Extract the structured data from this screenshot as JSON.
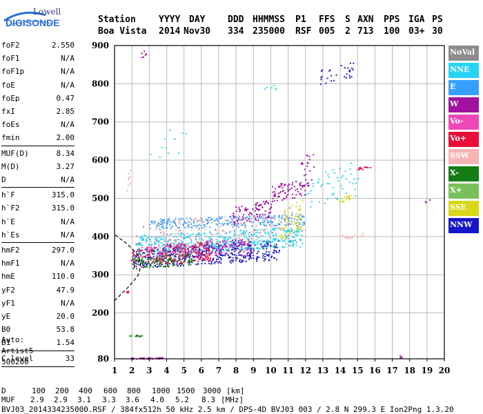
{
  "logo": {
    "line1": "Lowell",
    "line2": "DIGISONDE"
  },
  "header": {
    "labels": [
      "Station",
      "YYYY",
      "DAY",
      "DDD",
      "HHMMSS",
      "P1",
      "FFS",
      "S",
      "AXN",
      "PPS",
      "IGA",
      "PS"
    ],
    "values": [
      "Boa Vista",
      "2014",
      "Nov30",
      "334",
      "235000",
      "RSF",
      "005",
      "2",
      "713",
      "100",
      "03+",
      "30"
    ]
  },
  "params": [
    {
      "name": "foF2",
      "value": "2.550"
    },
    {
      "name": "foF1",
      "value": "N/A"
    },
    {
      "name": "foF1p",
      "value": "N/A"
    },
    {
      "name": "foE",
      "value": "N/A"
    },
    {
      "name": "foEp",
      "value": "0.47"
    },
    {
      "name": "fxI",
      "value": "2.85"
    },
    {
      "name": "foEs",
      "value": "N/A"
    },
    {
      "name": "fmin",
      "value": "2.00"
    },
    {
      "name": "MUF(D)",
      "value": "8.34"
    },
    {
      "name": "M(D)",
      "value": "3.27"
    },
    {
      "name": "D",
      "value": "N/A"
    },
    {
      "name": "h`F",
      "value": "315.0"
    },
    {
      "name": "h`F2",
      "value": "315.0"
    },
    {
      "name": "h`E",
      "value": "N/A"
    },
    {
      "name": "h`Es",
      "value": "N/A"
    },
    {
      "name": "hmF2",
      "value": "297.0"
    },
    {
      "name": "hmF1",
      "value": "N/A"
    },
    {
      "name": "hmE",
      "value": "110.0"
    },
    {
      "name": "yF2",
      "value": "47.9"
    },
    {
      "name": "yF1",
      "value": "N/A"
    },
    {
      "name": "yE",
      "value": "20.0"
    },
    {
      "name": "B0",
      "value": "53.8"
    },
    {
      "name": "B1",
      "value": "1.54"
    },
    {
      "name": "C-level",
      "value": "33"
    }
  ],
  "auto": {
    "line1": "Auto:",
    "line2": "Artist5",
    "line3": "500200"
  },
  "footer": {
    "d_label": "D",
    "d_values": [
      "100",
      "200",
      "400",
      "600",
      "800",
      "1000",
      "1500",
      "3000"
    ],
    "d_unit": "[km]",
    "muf_label": "MUF",
    "muf_values": [
      "2.9",
      "2.9",
      "3.1",
      "3.3",
      "3.6",
      "4.0",
      "5.2",
      "8.3"
    ],
    "muf_unit": "[MHz]",
    "file_line": "BVJ03_2014334235000.RSF / 384fx512h 50 kHz 2.5 km / DPS-4D BVJ03 003 / 2.8 N 299.3 E Ion2Png 1.3.20"
  },
  "legend": [
    {
      "label": "NoVal",
      "color": "#8c8c8c"
    },
    {
      "label": "NNE",
      "color": "#27d3f5"
    },
    {
      "label": "E",
      "color": "#36a0ff"
    },
    {
      "label": "W",
      "color": "#a0129f"
    },
    {
      "label": "Vo-",
      "color": "#f048b8"
    },
    {
      "label": "Vo+",
      "color": "#e8103a"
    },
    {
      "label": "SSW",
      "color": "#f7b4b4"
    },
    {
      "label": "X-",
      "color": "#147c14"
    },
    {
      "label": "X+",
      "color": "#7ac05a"
    },
    {
      "label": "SSE",
      "color": "#d8d818"
    },
    {
      "label": "NNW",
      "color": "#1616c8"
    }
  ],
  "chart_data": {
    "type": "scatter",
    "title": "",
    "xlabel": "",
    "ylabel": "",
    "xlim": [
      1,
      20
    ],
    "ylim": [
      80,
      900
    ],
    "x_ticks": [
      1,
      2,
      3,
      4,
      5,
      6,
      7,
      8,
      9,
      10,
      11,
      12,
      13,
      14,
      15,
      16,
      17,
      18,
      19,
      20
    ],
    "y_ticks": [
      80,
      200,
      300,
      400,
      500,
      600,
      700,
      800,
      900
    ],
    "grid": true,
    "legend_position": "right",
    "profile_curve": [
      [
        1.0,
        232
      ],
      [
        1.4,
        250
      ],
      [
        1.8,
        268
      ],
      [
        2.1,
        284
      ],
      [
        2.35,
        298
      ],
      [
        2.45,
        312
      ],
      [
        2.5,
        330
      ],
      [
        2.4,
        348
      ],
      [
        2.1,
        364
      ],
      [
        1.7,
        382
      ],
      [
        1.2,
        398
      ],
      [
        1.0,
        406
      ]
    ],
    "clusters": [
      {
        "series": "NNW",
        "x": [
          2.0,
          10.5
        ],
        "y": [
          318,
          392
        ],
        "count": 420
      },
      {
        "series": "NNE",
        "x": [
          2.2,
          11.8
        ],
        "y": [
          352,
          428
        ],
        "count": 520
      },
      {
        "series": "E",
        "x": [
          3.0,
          12.0
        ],
        "y": [
          420,
          460
        ],
        "count": 260
      },
      {
        "series": "Vo+",
        "x": [
          1.9,
          6.5
        ],
        "y": [
          315,
          390
        ],
        "count": 200
      },
      {
        "series": "X-",
        "x": [
          2.0,
          5.5
        ],
        "y": [
          315,
          360
        ],
        "count": 120
      },
      {
        "series": "SSW",
        "x": [
          3.0,
          12.0
        ],
        "y": [
          380,
          470
        ],
        "count": 180
      },
      {
        "series": "W",
        "x": [
          3.5,
          8.8
        ],
        "y": [
          348,
          395
        ],
        "count": 140
      },
      {
        "series": "Vo-",
        "x": [
          2.5,
          9.0
        ],
        "y": [
          330,
          400
        ],
        "count": 110
      },
      {
        "series": "W",
        "x": [
          7.8,
          10.0
        ],
        "y": [
          430,
          500
        ],
        "count": 90
      },
      {
        "series": "SSE",
        "x": [
          10.5,
          11.8
        ],
        "y": [
          385,
          500
        ],
        "count": 60
      },
      {
        "series": "NoVal",
        "x": [
          2.2,
          11.5
        ],
        "y": [
          330,
          480
        ],
        "count": 80
      },
      {
        "series": "W",
        "x": [
          10.0,
          12.2
        ],
        "y": [
          490,
          555
        ],
        "count": 80
      },
      {
        "series": "NNE",
        "x": [
          12.0,
          15.0
        ],
        "y": [
          470,
          600
        ],
        "count": 50
      },
      {
        "series": "NNW",
        "x": [
          12.8,
          14.8
        ],
        "y": [
          800,
          860
        ],
        "count": 30
      },
      {
        "series": "W",
        "x": [
          11.7,
          12.5
        ],
        "y": [
          520,
          640
        ],
        "count": 20
      },
      {
        "series": "Vo+",
        "x": [
          15.0,
          15.8
        ],
        "y": [
          575,
          585
        ],
        "count": 14
      },
      {
        "series": "SSE",
        "x": [
          13.9,
          14.6
        ],
        "y": [
          490,
          510
        ],
        "count": 16
      },
      {
        "series": "SSW",
        "x": [
          14.0,
          15.3
        ],
        "y": [
          395,
          410
        ],
        "count": 20
      },
      {
        "series": "SSW",
        "x": [
          1.7,
          1.9
        ],
        "y": [
          520,
          580
        ],
        "count": 10
      },
      {
        "series": "X-",
        "x": [
          1.8,
          2.6
        ],
        "y": [
          138,
          144
        ],
        "count": 12
      },
      {
        "series": "W",
        "x": [
          1.9,
          3.8
        ],
        "y": [
          80,
          85
        ],
        "count": 40
      },
      {
        "series": "NNE",
        "x": [
          3.0,
          5.5
        ],
        "y": [
          600,
          700
        ],
        "count": 12
      },
      {
        "series": "W",
        "x": [
          2.5,
          2.8
        ],
        "y": [
          860,
          900
        ],
        "count": 6
      },
      {
        "series": "W",
        "x": [
          17.3,
          17.6
        ],
        "y": [
          80,
          92
        ],
        "count": 6
      },
      {
        "series": "NNE",
        "x": [
          9.6,
          10.3
        ],
        "y": [
          780,
          800
        ],
        "count": 6
      },
      {
        "series": "Vo+",
        "x": [
          1.6,
          1.8
        ],
        "y": [
          250,
          262
        ],
        "count": 6
      },
      {
        "series": "W",
        "x": [
          18.8,
          19.3
        ],
        "y": [
          490,
          500
        ],
        "count": 3
      }
    ]
  }
}
